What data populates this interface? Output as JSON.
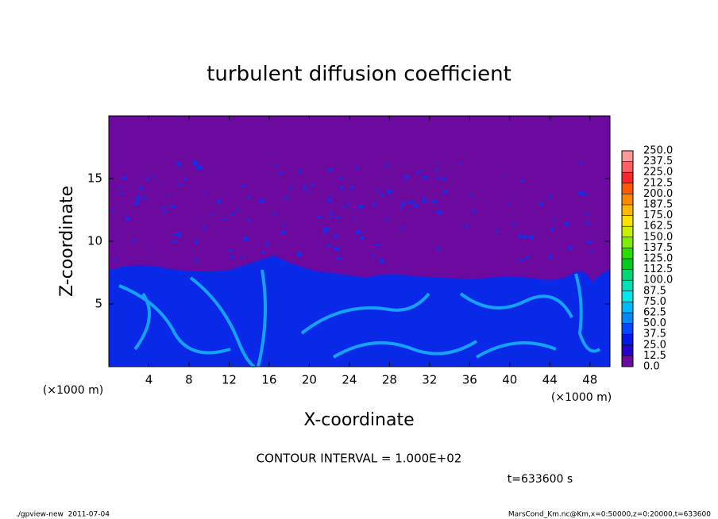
{
  "chart_data": {
    "type": "contour",
    "title": "turbulent diffusion coefficient",
    "xlabel": "X-coordinate",
    "ylabel": "Z-coordinate",
    "x_unit": "(×1000 m)",
    "xlim": [
      0,
      50
    ],
    "xticks": [
      4,
      8,
      12,
      16,
      20,
      24,
      28,
      32,
      36,
      40,
      44,
      48
    ],
    "ylim": [
      0,
      20
    ],
    "yticks": [
      5,
      10,
      15
    ],
    "colorbar": {
      "ticks": [
        {
          "value": 0,
          "label": "0.0"
        },
        {
          "value": 12.5,
          "label": "12.5"
        },
        {
          "value": 25,
          "label": "25.0"
        },
        {
          "value": 37.5,
          "label": "37.5"
        },
        {
          "value": 50,
          "label": "50.0"
        },
        {
          "value": 62.5,
          "label": "62.5"
        },
        {
          "value": 75,
          "label": "75.0"
        },
        {
          "value": 87.5,
          "label": "87.5"
        },
        {
          "value": 100,
          "label": "100.0"
        },
        {
          "value": 112.5,
          "label": "112.5"
        },
        {
          "value": 125,
          "label": "125.0"
        },
        {
          "value": 137.5,
          "label": "137.5"
        },
        {
          "value": 150,
          "label": "150.0"
        },
        {
          "value": 162.5,
          "label": "162.5"
        },
        {
          "value": 175,
          "label": "175.0"
        },
        {
          "value": 187.5,
          "label": "187.5"
        },
        {
          "value": 200,
          "label": "200.0"
        },
        {
          "value": 212.5,
          "label": "212.5"
        },
        {
          "value": 225,
          "label": "225.0"
        },
        {
          "value": 237.5,
          "label": "237.5"
        },
        {
          "value": 250,
          "label": "250.0"
        }
      ],
      "colors": [
        "#6c0aa0",
        "#2400c8",
        "#0018e8",
        "#0048ff",
        "#0088ff",
        "#00b8ff",
        "#00e8f0",
        "#00e0b8",
        "#00d878",
        "#00cc20",
        "#30dc00",
        "#80ec00",
        "#c8f000",
        "#ffe000",
        "#ffb800",
        "#ff8800",
        "#ff5800",
        "#ff2828",
        "#ff6060",
        "#ff9898"
      ]
    },
    "contour_note": "CONTOUR INTERVAL = 1.000E+02",
    "time_label": "t=633600 s",
    "footer_left": "./gpview-new  2011-07-04",
    "footer_right": "MarsCond_Km.nc@Km,x=0:50000,z=0:20000,t=633600"
  }
}
